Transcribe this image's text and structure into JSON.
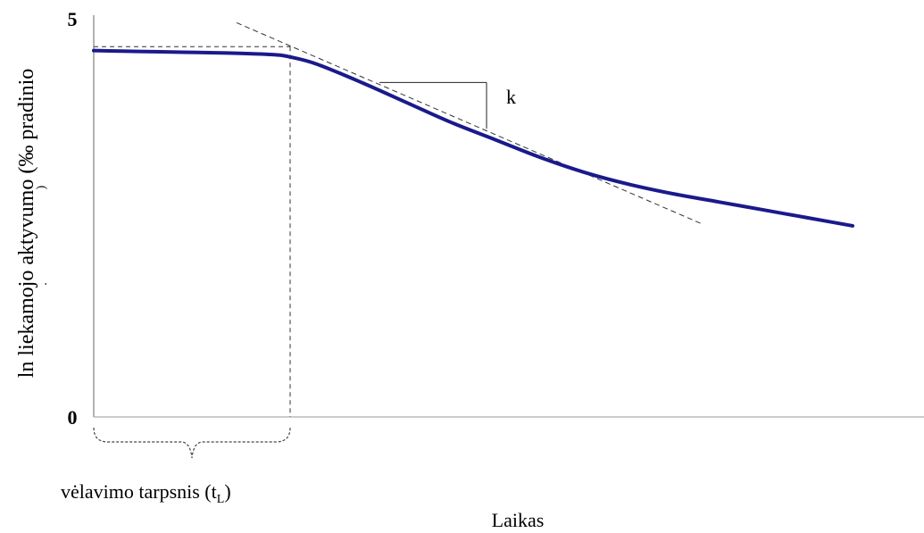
{
  "chart_data": {
    "type": "line",
    "xlabel": "Laikas",
    "ylabel": "ln liekamojo aktyvumo (‰ pradinio",
    "ylabel_fragments": [
      ")",
      "."
    ],
    "ylim": [
      0,
      5
    ],
    "y_ticks": [
      "0",
      "5"
    ],
    "series": [
      {
        "name": "",
        "color": "#1a1a8c",
        "x": [
          0,
          0.5,
          1.0,
          1.5,
          2.0,
          2.2,
          2.5,
          3.0,
          3.5,
          4.0,
          4.5,
          5.0,
          5.5,
          6.0,
          6.5,
          7.0,
          7.5,
          8.0,
          8.5
        ],
        "y": [
          4.6,
          4.59,
          4.58,
          4.57,
          4.55,
          4.52,
          4.43,
          4.2,
          3.95,
          3.7,
          3.48,
          3.26,
          3.07,
          2.92,
          2.8,
          2.7,
          2.6,
          2.5,
          2.4
        ]
      }
    ],
    "tangent": {
      "x": [
        1.6,
        6.8
      ],
      "y": [
        4.95,
        2.43
      ]
    },
    "lag_end_x": 2.2,
    "lag_level_y": 4.65,
    "slope_triangle": {
      "x1": 3.2,
      "x2": 4.4,
      "y_top": 4.2,
      "y_bottom": 3.62
    },
    "annotations": {
      "slope_label": "k",
      "lag_label_main": "vėlavimo tarpsnis (t",
      "lag_label_sub": "L",
      "lag_label_close": ")"
    }
  }
}
